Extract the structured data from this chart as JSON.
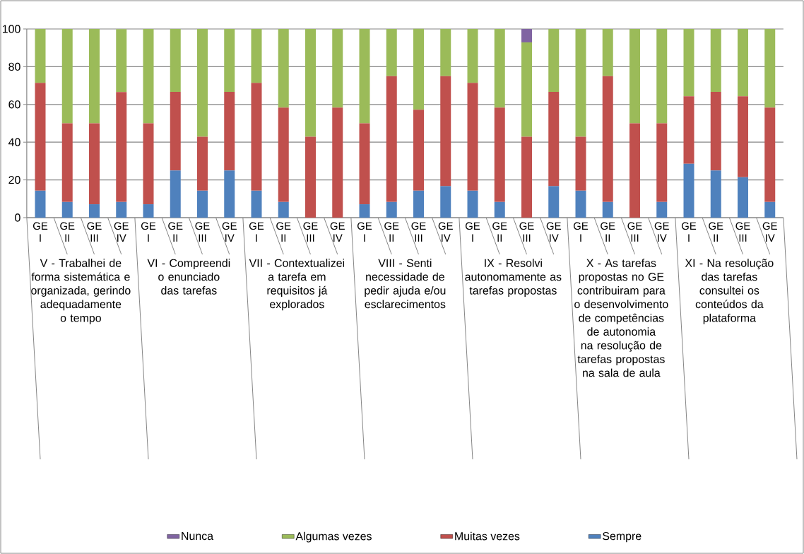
{
  "chart_data": {
    "type": "bar",
    "stacked": true,
    "categories": [
      "GE I",
      "GE II",
      "GE III",
      "GE IV",
      "GE I",
      "GE II",
      "GE III",
      "GE IV",
      "GE I",
      "GE II",
      "GE III",
      "GE IV",
      "GE I",
      "GE II",
      "GE III",
      "GE IV",
      "GE I",
      "GE II",
      "GE III",
      "GE IV",
      "GE I",
      "GE II",
      "GE III",
      "GE IV",
      "GE I",
      "GE II",
      "GE III",
      "GE IV"
    ],
    "series": [
      {
        "name": "Sempre",
        "color": "#4f81bd",
        "values": [
          14.3,
          8.3,
          7.1,
          8.3,
          7.1,
          25,
          14.3,
          25,
          14.3,
          8.3,
          0,
          0,
          7.1,
          8.3,
          14.3,
          16.7,
          14.3,
          8.3,
          0,
          16.7,
          14.3,
          8.3,
          0,
          8.3,
          28.6,
          25,
          21.4,
          8.3
        ]
      },
      {
        "name": "Muitas vezes",
        "color": "#c0504d",
        "values": [
          57.1,
          41.7,
          42.9,
          58.3,
          42.9,
          41.7,
          28.6,
          41.7,
          57.1,
          50,
          42.9,
          58.3,
          42.9,
          66.7,
          42.9,
          58.3,
          57.1,
          50,
          42.9,
          50,
          28.6,
          66.7,
          50,
          41.7,
          35.7,
          41.7,
          42.9,
          50
        ]
      },
      {
        "name": "Algumas vezes",
        "color": "#9bbb59",
        "values": [
          28.6,
          50,
          50,
          33.3,
          50,
          33.3,
          57.1,
          33.3,
          28.6,
          41.7,
          57.1,
          41.7,
          50,
          25,
          42.9,
          25,
          28.6,
          41.7,
          50,
          33.3,
          57.1,
          25,
          50,
          50,
          35.7,
          33.3,
          35.7,
          41.7
        ]
      },
      {
        "name": "Nunca",
        "color": "#8064a2",
        "values": [
          0,
          0,
          0,
          0,
          0,
          0,
          0,
          0,
          0,
          0,
          0,
          0,
          0,
          0,
          0,
          0,
          0,
          0,
          7.1,
          0,
          0,
          0,
          0,
          0,
          0,
          0,
          0,
          0
        ]
      }
    ],
    "ylim": [
      0,
      100
    ],
    "yticks": [
      0,
      20,
      40,
      60,
      80,
      100
    ],
    "grid": "y",
    "legend": "bottom",
    "annotations": [
      "V - Trabalhei de forma sistemática e organizada, gerindo adequadamente o tempo",
      "VI - Compreendi o enunciado das tarefas",
      "VII - Contextualizei a tarefa em requisitos já explorados",
      "VIII - Senti necessidade de pedir ajuda e/ou esclarecimentos",
      "IX - Resolvi autonomamente as tarefas propostas",
      "X - As tarefas propostas no GE contribuiram para o desenvolvimento de competências de autonomia na resolução de tarefas propostas na sala de aula",
      "XI - Na resolução das tarefas consultei os conteúdos da plataforma"
    ]
  }
}
